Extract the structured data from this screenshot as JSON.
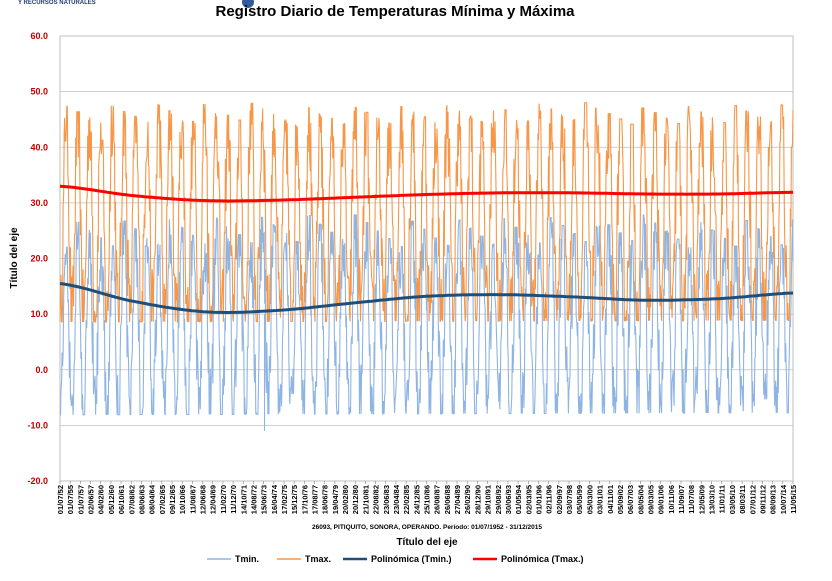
{
  "header": {
    "org_text": "Y RECURSOS NATURALES"
  },
  "chart_data": {
    "type": "line",
    "title": "Registro Diario de Temperaturas Mínima y Máxima",
    "subtitle": "26093, PITIQUITO, SONORA, OPERANDO. Período: 01/07/1952 - 31/12/2015",
    "xlabel": "Título del eje",
    "ylabel": "Título del eje",
    "ylim": [
      -20,
      60
    ],
    "yticks": [
      "60.0",
      "50.0",
      "40.0",
      "30.0",
      "20.0",
      "10.0",
      "0.0",
      "-10.0",
      "-20.0"
    ],
    "grid": true,
    "legend_position": "bottom",
    "x_tick_labels": [
      "01/07/52",
      "01/07/55",
      "01/07/57",
      "02/06/57",
      "04/02/60",
      "05/12/60",
      "06/10/61",
      "07/08/62",
      "08/06/63",
      "08/04/64",
      "07/02/65",
      "09/12/65",
      "10/10/66",
      "11/08/67",
      "12/06/68",
      "12/04/69",
      "11/02/70",
      "11/12/70",
      "14/10/71",
      "14/08/72",
      "15/06/73",
      "16/04/74",
      "17/02/75",
      "15/12/75",
      "17/10/76",
      "17/08/77",
      "18/06/78",
      "19/04/79",
      "20/02/80",
      "20/12/80",
      "21/10/81",
      "22/08/82",
      "23/06/83",
      "23/04/84",
      "22/02/85",
      "24/12/85",
      "25/10/86",
      "26/08/87",
      "26/06/88",
      "27/04/89",
      "26/02/90",
      "28/12/90",
      "29/10/91",
      "29/08/92",
      "30/06/93",
      "01/05/94",
      "02/03/95",
      "01/01/96",
      "02/11/96",
      "02/09/97",
      "03/07/98",
      "05/05/99",
      "05/03/00",
      "03/01/01",
      "04/11/01",
      "05/09/02",
      "06/07/03",
      "08/05/04",
      "09/03/05",
      "09/01/06",
      "10/11/06",
      "11/09/07",
      "11/07/08",
      "12/05/09",
      "13/03/10",
      "11/01/11",
      "03/05/10",
      "08/03/11",
      "07/01/12",
      "09/11/12",
      "08/09/13",
      "10/07/14",
      "11/05/15"
    ],
    "series": [
      {
        "name": "Tmin.",
        "color": "#8eb4e3",
        "summary": "daily minimum temperature, oscillating annually roughly between -8 and 28 with one outlier near -11",
        "annual_min_range": [
          -8.5,
          -1
        ],
        "annual_max_range": [
          22,
          28
        ]
      },
      {
        "name": "Tmax.",
        "color": "#f79646",
        "summary": "daily maximum temperature, oscillating annually roughly between 10 and 47, peak near 48",
        "annual_min_range": [
          8,
          14
        ],
        "annual_max_range": [
          44,
          48
        ]
      },
      {
        "name": "Polinómica (Tmin.)",
        "color": "#1f4e79",
        "type": "trendline",
        "points": [
          [
            0,
            15.5
          ],
          [
            0.1,
            12.3
          ],
          [
            0.2,
            10.4
          ],
          [
            0.3,
            10.7
          ],
          [
            0.4,
            12.0
          ],
          [
            0.5,
            13.2
          ],
          [
            0.6,
            13.5
          ],
          [
            0.7,
            13.1
          ],
          [
            0.8,
            12.5
          ],
          [
            0.9,
            12.8
          ],
          [
            1.0,
            13.8
          ]
        ]
      },
      {
        "name": "Polinómica (Tmax.)",
        "color": "#ff0000",
        "type": "trendline",
        "points": [
          [
            0,
            33.0
          ],
          [
            0.1,
            31.3
          ],
          [
            0.2,
            30.4
          ],
          [
            0.3,
            30.5
          ],
          [
            0.4,
            31.0
          ],
          [
            0.5,
            31.5
          ],
          [
            0.6,
            31.8
          ],
          [
            0.7,
            31.8
          ],
          [
            0.8,
            31.6
          ],
          [
            0.9,
            31.6
          ],
          [
            1.0,
            31.9
          ]
        ]
      }
    ]
  }
}
